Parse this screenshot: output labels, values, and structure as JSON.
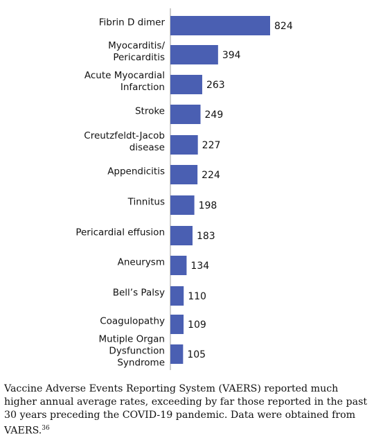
{
  "chart_data": {
    "type": "bar",
    "orientation": "horizontal",
    "categories": [
      "Fibrin D dimer",
      "Myocarditis/ Pericarditis",
      "Acute Myocardial Infarction",
      "Stroke",
      "Creutzfeldt-Jacob disease",
      "Appendicitis",
      "Tinnitus",
      "Pericardial effusion",
      "Aneurysm",
      "Bell's Palsy",
      "Coagulopathy",
      "Mutiple Organ Dysfunction Syndrome"
    ],
    "category_lines": [
      [
        "Fibrin D dimer"
      ],
      [
        "Myocarditis/",
        "Pericarditis"
      ],
      [
        "Acute Myocardial",
        "Infarction"
      ],
      [
        "Stroke"
      ],
      [
        "Creutzfeldt-Jacob",
        "disease"
      ],
      [
        "Appendicitis"
      ],
      [
        "Tinnitus"
      ],
      [
        "Pericardial effusion"
      ],
      [
        "Aneurysm"
      ],
      [
        "Bell’s Palsy"
      ],
      [
        "Coagulopathy"
      ],
      [
        "Mutiple Organ",
        "Dysfunction",
        "Syndrome"
      ]
    ],
    "values": [
      824,
      394,
      263,
      249,
      227,
      224,
      198,
      183,
      134,
      110,
      109,
      105
    ],
    "data_labels": [
      "824",
      "394",
      "263",
      "249",
      "227",
      "224",
      "198",
      "183",
      "134",
      "110",
      "109",
      "105"
    ],
    "bar_color": "#4a5fb2",
    "grid": false,
    "legend": "none"
  },
  "caption": {
    "text": "Vaccine Adverse Events Reporting System (VAERS) reported much higher annual average rates, exceeding by far those reported in the past 30 years preceding the COVID-19 pandemic. Data were obtained from VAERS.",
    "reference": "36"
  }
}
